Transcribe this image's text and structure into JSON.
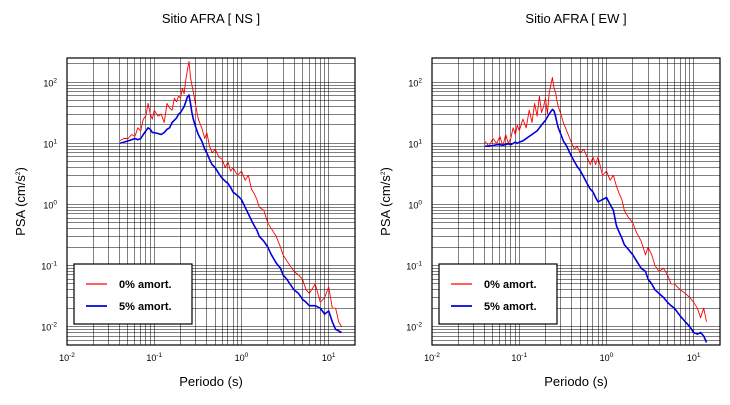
{
  "chart_data": [
    {
      "type": "line",
      "title": "Sitio AFRA [ NS ]",
      "xlabel": "Periodo (s)",
      "ylabel_base": "PSA (cm/s",
      "ylabel_sup": "2",
      "ylabel_close": ")",
      "xscale": "log",
      "yscale": "log",
      "xlim": [
        0.01,
        20
      ],
      "ylim": [
        0.005,
        250
      ],
      "grid": true,
      "legend": "bottom-left",
      "x_ticks": [
        {
          "value": 0.01,
          "base": "10",
          "exp": "-2"
        },
        {
          "value": 0.1,
          "base": "10",
          "exp": "-1"
        },
        {
          "value": 1,
          "base": "10",
          "exp": "0"
        },
        {
          "value": 10,
          "base": "10",
          "exp": "1"
        }
      ],
      "y_ticks": [
        {
          "value": 0.01,
          "base": "10",
          "exp": "-2"
        },
        {
          "value": 0.1,
          "base": "10",
          "exp": "-1"
        },
        {
          "value": 1,
          "base": "10",
          "exp": "0"
        },
        {
          "value": 10,
          "base": "10",
          "exp": "1"
        },
        {
          "value": 100,
          "base": "10",
          "exp": "2"
        }
      ],
      "series": [
        {
          "name": "0% amort.",
          "color": "#ff0000",
          "x": [
            0.04,
            0.045,
            0.05,
            0.055,
            0.06,
            0.065,
            0.07,
            0.075,
            0.08,
            0.085,
            0.09,
            0.095,
            0.1,
            0.11,
            0.12,
            0.13,
            0.14,
            0.15,
            0.16,
            0.17,
            0.18,
            0.19,
            0.2,
            0.21,
            0.22,
            0.23,
            0.24,
            0.25,
            0.26,
            0.27,
            0.28,
            0.3,
            0.32,
            0.35,
            0.38,
            0.4,
            0.43,
            0.46,
            0.5,
            0.55,
            0.6,
            0.65,
            0.7,
            0.75,
            0.8,
            0.9,
            1.0,
            1.1,
            1.2,
            1.3,
            1.4,
            1.5,
            1.6,
            1.8,
            2.0,
            2.2,
            2.5,
            2.8,
            3.0,
            3.3,
            3.6,
            4.0,
            4.5,
            5.0,
            5.5,
            6.0,
            7.0,
            8.0,
            9.0,
            10.0,
            11.0,
            12.0,
            13.0,
            14.0
          ],
          "y": [
            11,
            12,
            12,
            14,
            13,
            18,
            16,
            25,
            28,
            45,
            30,
            25,
            35,
            28,
            30,
            22,
            45,
            38,
            35,
            55,
            48,
            60,
            55,
            80,
            65,
            110,
            160,
            220,
            120,
            90,
            70,
            40,
            25,
            18,
            12,
            15,
            9,
            7,
            8,
            6,
            5.5,
            4,
            5,
            3.5,
            4,
            3,
            3.5,
            2.5,
            3,
            1.8,
            1.5,
            1.2,
            0.9,
            0.8,
            0.5,
            0.4,
            0.3,
            0.2,
            0.15,
            0.12,
            0.1,
            0.08,
            0.07,
            0.06,
            0.04,
            0.035,
            0.05,
            0.025,
            0.03,
            0.045,
            0.02,
            0.02,
            0.012,
            0.01
          ]
        },
        {
          "name": "5% amort.",
          "color": "#0000dd",
          "x": [
            0.04,
            0.045,
            0.05,
            0.055,
            0.06,
            0.065,
            0.07,
            0.075,
            0.08,
            0.085,
            0.09,
            0.095,
            0.1,
            0.11,
            0.12,
            0.13,
            0.14,
            0.15,
            0.16,
            0.17,
            0.18,
            0.19,
            0.2,
            0.21,
            0.22,
            0.23,
            0.24,
            0.25,
            0.26,
            0.27,
            0.28,
            0.3,
            0.32,
            0.35,
            0.38,
            0.4,
            0.43,
            0.46,
            0.5,
            0.55,
            0.6,
            0.65,
            0.7,
            0.75,
            0.8,
            0.9,
            1.0,
            1.1,
            1.2,
            1.3,
            1.4,
            1.5,
            1.6,
            1.8,
            2.0,
            2.2,
            2.5,
            2.8,
            3.0,
            3.3,
            3.6,
            4.0,
            4.5,
            5.0,
            5.5,
            6.0,
            7.0,
            8.0,
            9.0,
            10.0,
            11.0,
            12.0,
            13.0,
            14.0
          ],
          "y": [
            10,
            10.5,
            11,
            11.5,
            12,
            11.5,
            12,
            14,
            16,
            18,
            17,
            15,
            15,
            14.5,
            14,
            15,
            17,
            18,
            22,
            24,
            26,
            30,
            32,
            36,
            40,
            48,
            58,
            62,
            45,
            32,
            25,
            18,
            14,
            11,
            8,
            7,
            5.5,
            4.5,
            4,
            3.2,
            2.7,
            2.4,
            2.2,
            1.9,
            1.6,
            1.4,
            1.2,
            0.9,
            0.7,
            0.55,
            0.45,
            0.38,
            0.3,
            0.25,
            0.2,
            0.15,
            0.11,
            0.09,
            0.07,
            0.06,
            0.05,
            0.04,
            0.035,
            0.028,
            0.025,
            0.022,
            0.022,
            0.02,
            0.016,
            0.018,
            0.012,
            0.009,
            0.0085,
            0.008
          ]
        }
      ]
    },
    {
      "type": "line",
      "title": "Sitio AFRA [ EW ]",
      "xlabel": "Periodo (s)",
      "ylabel_base": "PSA (cm/s",
      "ylabel_sup": "2",
      "ylabel_close": ")",
      "xscale": "log",
      "yscale": "log",
      "xlim": [
        0.01,
        20
      ],
      "ylim": [
        0.005,
        250
      ],
      "grid": true,
      "legend": "bottom-left",
      "x_ticks": [
        {
          "value": 0.01,
          "base": "10",
          "exp": "-2"
        },
        {
          "value": 0.1,
          "base": "10",
          "exp": "-1"
        },
        {
          "value": 1,
          "base": "10",
          "exp": "0"
        },
        {
          "value": 10,
          "base": "10",
          "exp": "1"
        }
      ],
      "y_ticks": [
        {
          "value": 0.01,
          "base": "10",
          "exp": "-2"
        },
        {
          "value": 0.1,
          "base": "10",
          "exp": "-1"
        },
        {
          "value": 1,
          "base": "10",
          "exp": "0"
        },
        {
          "value": 10,
          "base": "10",
          "exp": "1"
        },
        {
          "value": 100,
          "base": "10",
          "exp": "2"
        }
      ],
      "series": [
        {
          "name": "0% amort.",
          "color": "#ff0000",
          "x": [
            0.04,
            0.045,
            0.05,
            0.055,
            0.06,
            0.065,
            0.07,
            0.075,
            0.08,
            0.085,
            0.09,
            0.095,
            0.1,
            0.11,
            0.12,
            0.13,
            0.14,
            0.15,
            0.16,
            0.17,
            0.18,
            0.19,
            0.2,
            0.21,
            0.22,
            0.23,
            0.24,
            0.25,
            0.26,
            0.27,
            0.28,
            0.3,
            0.32,
            0.35,
            0.38,
            0.4,
            0.43,
            0.46,
            0.5,
            0.55,
            0.6,
            0.65,
            0.7,
            0.75,
            0.8,
            0.9,
            1.0,
            1.1,
            1.2,
            1.3,
            1.4,
            1.5,
            1.6,
            1.8,
            2.0,
            2.2,
            2.5,
            2.8,
            3.0,
            3.3,
            3.6,
            4.0,
            4.5,
            5.0,
            5.5,
            6.0,
            7.0,
            8.0,
            9.0,
            10.0,
            11.0,
            12.0,
            13.0,
            14.0
          ],
          "y": [
            11,
            9,
            12,
            10,
            13,
            9,
            14,
            10,
            12,
            18,
            14,
            20,
            16,
            25,
            18,
            35,
            22,
            45,
            28,
            60,
            32,
            40,
            55,
            30,
            65,
            90,
            120,
            80,
            70,
            50,
            40,
            30,
            22,
            16,
            12,
            10,
            8,
            9,
            7,
            8,
            6,
            4.5,
            6,
            4.5,
            6,
            3,
            3.5,
            2.5,
            3,
            2,
            1.5,
            1.2,
            0.8,
            0.6,
            0.5,
            0.35,
            0.25,
            0.15,
            0.2,
            0.15,
            0.1,
            0.08,
            0.09,
            0.07,
            0.05,
            0.05,
            0.04,
            0.035,
            0.03,
            0.025,
            0.02,
            0.014,
            0.02,
            0.012
          ]
        },
        {
          "name": "5% amort.",
          "color": "#0000dd",
          "x": [
            0.04,
            0.045,
            0.05,
            0.055,
            0.06,
            0.065,
            0.07,
            0.075,
            0.08,
            0.085,
            0.09,
            0.095,
            0.1,
            0.11,
            0.12,
            0.13,
            0.14,
            0.15,
            0.16,
            0.17,
            0.18,
            0.19,
            0.2,
            0.21,
            0.22,
            0.23,
            0.24,
            0.25,
            0.26,
            0.27,
            0.28,
            0.3,
            0.32,
            0.35,
            0.38,
            0.4,
            0.43,
            0.46,
            0.5,
            0.55,
            0.6,
            0.65,
            0.7,
            0.75,
            0.8,
            0.9,
            1.0,
            1.1,
            1.2,
            1.3,
            1.4,
            1.5,
            1.6,
            1.8,
            2.0,
            2.2,
            2.5,
            2.8,
            3.0,
            3.3,
            3.6,
            4.0,
            4.5,
            5.0,
            5.5,
            6.0,
            7.0,
            8.0,
            9.0,
            10.0,
            11.0,
            12.0,
            13.0,
            14.0
          ],
          "y": [
            9,
            9,
            9.2,
            9.5,
            9.5,
            9.3,
            9.6,
            9.8,
            9.5,
            10,
            10.5,
            10,
            10.5,
            11,
            12,
            13,
            14,
            15,
            16,
            18,
            20,
            22,
            24,
            27,
            30,
            33,
            36,
            34,
            28,
            22,
            18,
            14,
            11,
            9,
            7,
            6,
            5,
            4.2,
            3.6,
            2.8,
            2.2,
            1.8,
            1.6,
            1.3,
            1.1,
            1.2,
            1.3,
            1.0,
            0.8,
            0.45,
            0.35,
            0.28,
            0.22,
            0.18,
            0.15,
            0.12,
            0.09,
            0.08,
            0.06,
            0.05,
            0.04,
            0.035,
            0.03,
            0.025,
            0.022,
            0.02,
            0.015,
            0.012,
            0.01,
            0.008,
            0.0075,
            0.008,
            0.007,
            0.0055
          ]
        }
      ]
    }
  ]
}
